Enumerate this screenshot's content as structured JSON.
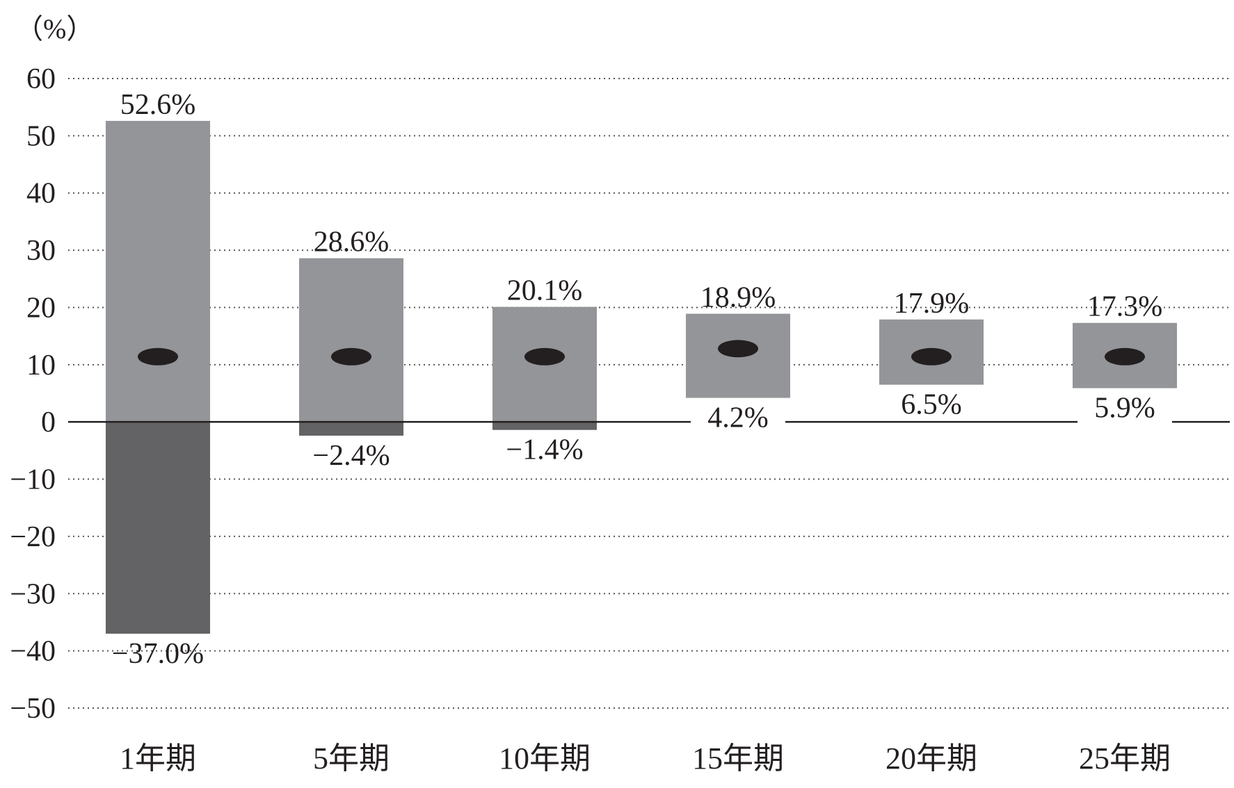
{
  "chart_data": {
    "type": "bar",
    "subtype": "floating-range",
    "unit_label": "（%）",
    "ylim": [
      -50,
      60
    ],
    "yticks": [
      60,
      50,
      40,
      30,
      20,
      10,
      0,
      -10,
      -20,
      -30,
      -40,
      -50
    ],
    "ytick_labels": [
      "60",
      "50",
      "40",
      "30",
      "20",
      "10",
      "0",
      "−10",
      "−20",
      "−30",
      "−40",
      "−50"
    ],
    "grid": true,
    "categories": [
      "1年期",
      "5年期",
      "10年期",
      "15年期",
      "20年期",
      "25年期"
    ],
    "max": [
      52.6,
      28.6,
      20.1,
      18.9,
      17.9,
      17.3
    ],
    "min": [
      -37.0,
      -2.4,
      -1.4,
      4.2,
      6.5,
      5.9
    ],
    "average": [
      11.4,
      11.4,
      11.4,
      12.8,
      11.4,
      11.4
    ],
    "max_labels": [
      "52.6%",
      "28.6%",
      "20.1%",
      "18.9%",
      "17.9%",
      "17.3%"
    ],
    "min_labels": [
      "−37.0%",
      "−2.4%",
      "−1.4%",
      "4.2%",
      "6.5%",
      "5.9%"
    ],
    "colors": {
      "positive_bar": "#939598",
      "negative_bar": "#636366",
      "marker": "#231f20",
      "grid": "#555555",
      "axis": "#231f20"
    }
  }
}
